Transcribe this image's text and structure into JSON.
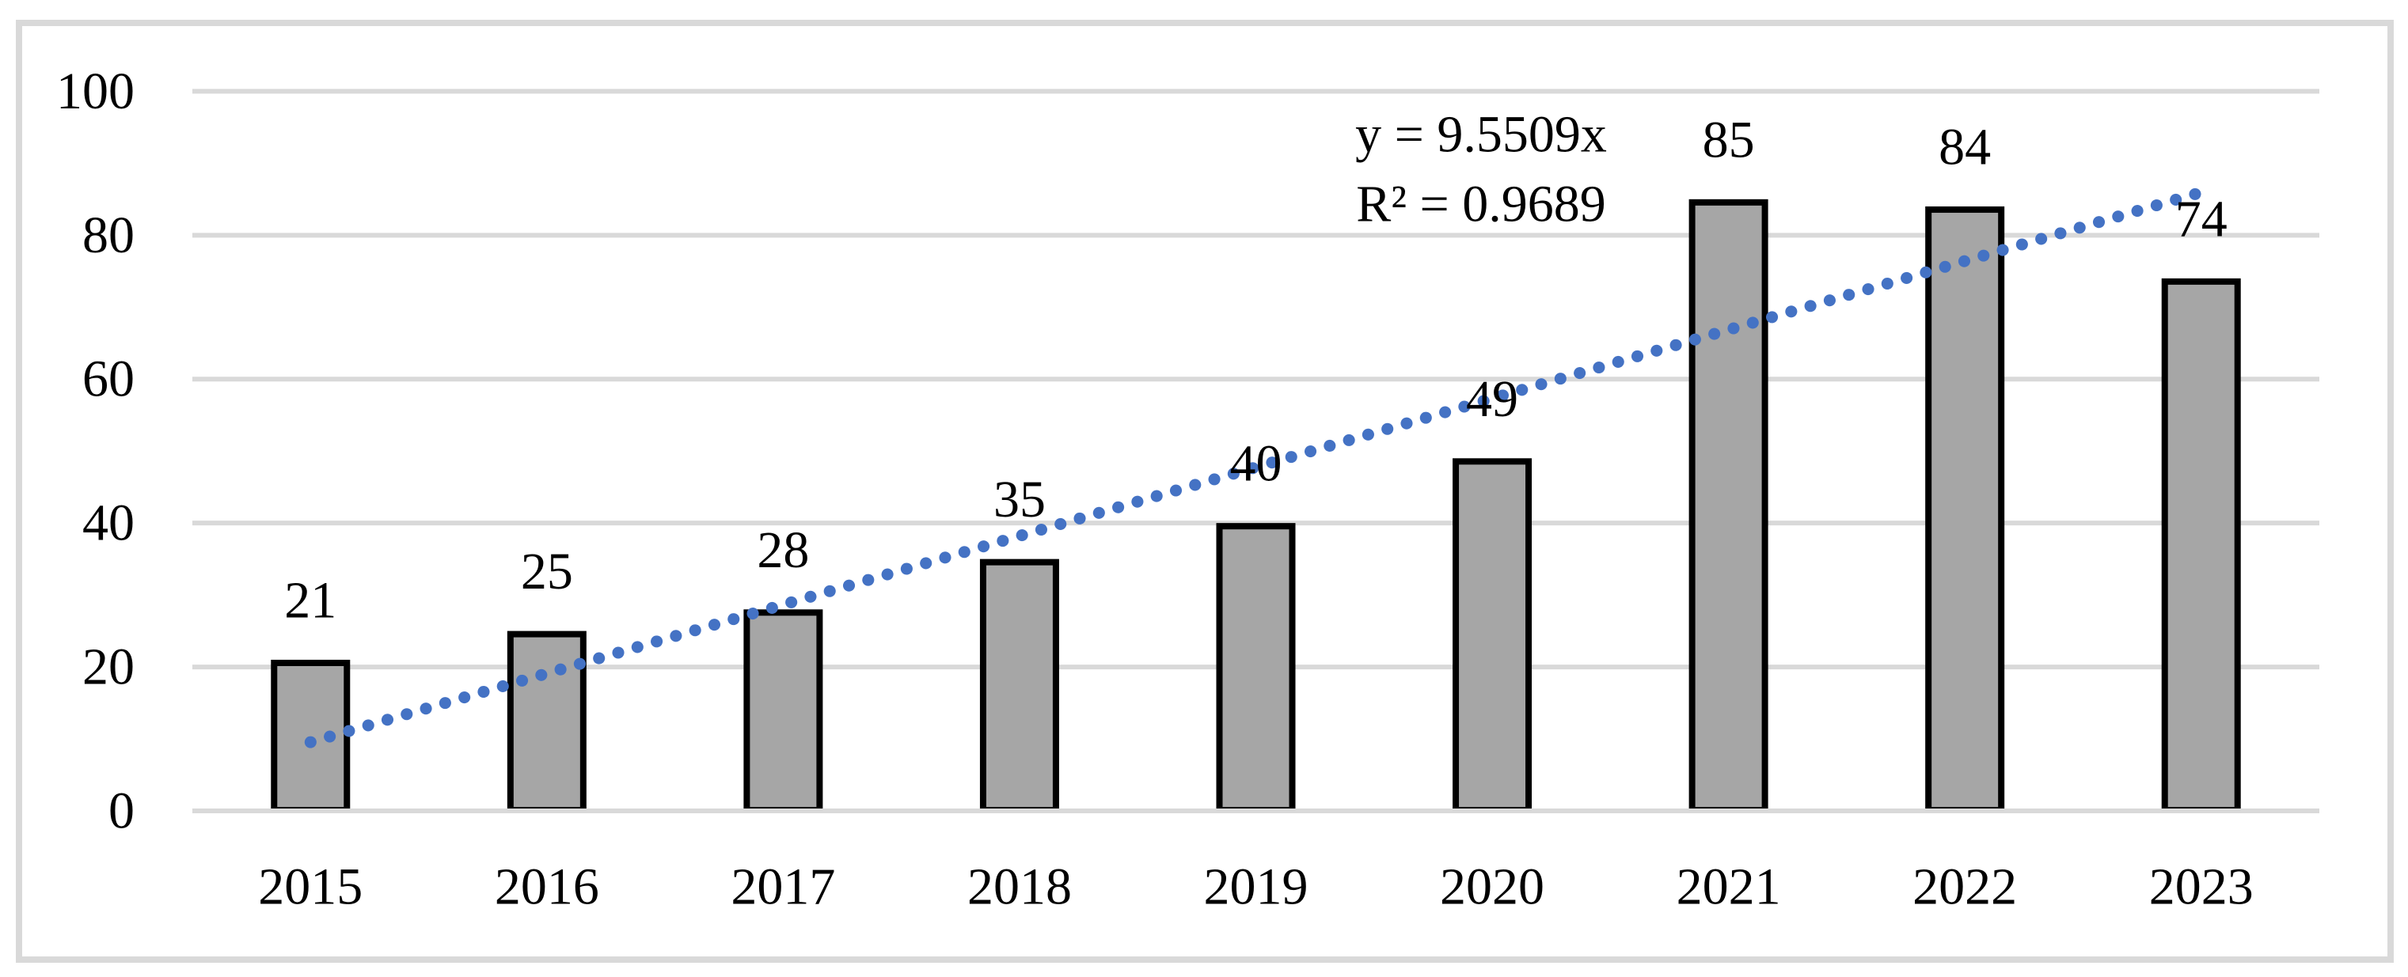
{
  "chart_data": {
    "type": "bar",
    "title": "",
    "xlabel": "",
    "ylabel": "",
    "categories": [
      "2015",
      "2016",
      "2017",
      "2018",
      "2019",
      "2020",
      "2021",
      "2022",
      "2023"
    ],
    "values": [
      21,
      25,
      28,
      35,
      40,
      49,
      85,
      84,
      74
    ],
    "ylim": [
      0,
      100
    ],
    "yticks": [
      0,
      20,
      40,
      60,
      80,
      100
    ],
    "grid": true,
    "legend": "none",
    "data_labels_visible": true,
    "trendline": {
      "type": "linear",
      "slope": 9.5509,
      "intercept": 0,
      "style": "dotted",
      "equation_label": "y = 9.5509x",
      "r_squared_label": "R² = 0.9689"
    },
    "colors": {
      "bar_fill": "#A6A6A6",
      "bar_border": "#000000",
      "trendline": "#4472C4",
      "gridline": "#D9D9D9",
      "frame_border": "#D9D9D9",
      "text": "#000000",
      "background": "#FFFFFF"
    }
  }
}
